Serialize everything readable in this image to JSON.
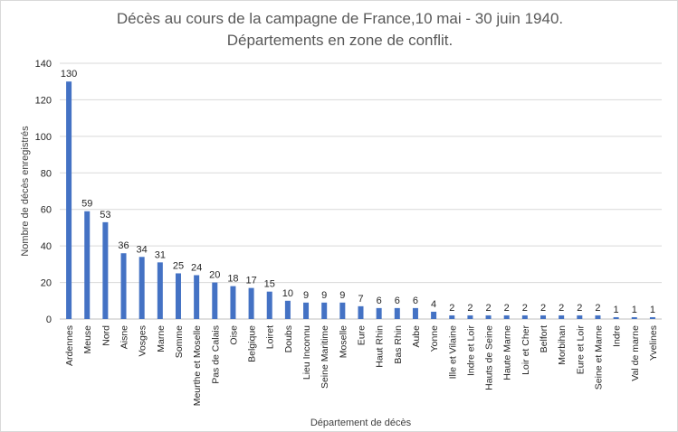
{
  "chart_data": {
    "type": "bar",
    "title_line1": "Décès au cours de la campagne de France,10 mai - 30 juin 1940.",
    "title_line2": "Départements en zone de conflit.",
    "xlabel": "Département de décès",
    "ylabel": "Nombre de décès enregistrés",
    "ylim": [
      0,
      140
    ],
    "yticks": [
      0,
      20,
      40,
      60,
      80,
      100,
      120,
      140
    ],
    "grid": true,
    "bar_color": "#4472c4",
    "categories": [
      "Ardennes",
      "Meuse",
      "Nord",
      "Aisne",
      "Vosges",
      "Marne",
      "Somme",
      "Meurthe et Moselle",
      "Pas de Calais",
      "Oise",
      "Belgique",
      "Loiret",
      "Doubs",
      "Lieu Inconnu",
      "Seine Maritime",
      "Moselle",
      "Eure",
      "Haut Rhin",
      "Bas Rhin",
      "Aube",
      "Yonne",
      "Ille et Vilaine",
      "Indre et Loir",
      "Hauts de Seine",
      "Haute Marne",
      "Loir et Cher",
      "Belfort",
      "Morbihan",
      "Eure et Loir",
      "Seine et Marne",
      "Indre",
      "Val de marne",
      "Yvelines"
    ],
    "values": [
      130,
      59,
      53,
      36,
      34,
      31,
      25,
      24,
      20,
      18,
      17,
      15,
      10,
      9,
      9,
      9,
      7,
      6,
      6,
      6,
      4,
      2,
      2,
      2,
      2,
      2,
      2,
      2,
      2,
      2,
      1,
      1,
      1
    ]
  }
}
